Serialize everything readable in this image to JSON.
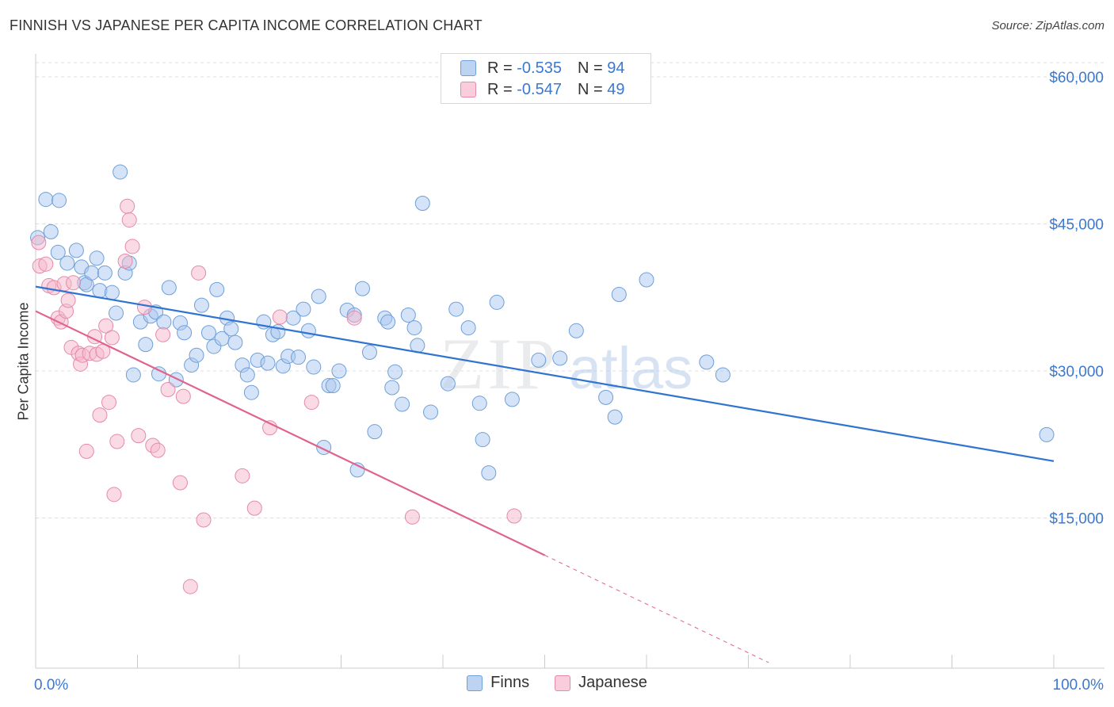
{
  "title": "FINNISH VS JAPANESE PER CAPITA INCOME CORRELATION CHART",
  "source": "Source: ZipAtlas.com",
  "legend": {
    "finns": {
      "r_label": "R =",
      "r_value": "-0.535",
      "n_label": "N =",
      "n_value": "94"
    },
    "japanese": {
      "r_label": "R =",
      "r_value": "-0.547",
      "n_label": "N =",
      "n_value": "49"
    }
  },
  "bottom_legend": {
    "finns": "Finns",
    "japanese": "Japanese"
  },
  "colors": {
    "finns_fill": "#a9c8ef",
    "finns_stroke": "#6f9fd8",
    "finns_line": "#2f74d0",
    "japanese_fill": "#f6b8cc",
    "japanese_stroke": "#e58aa8",
    "japanese_line": "#e0628f",
    "axis_text": "#3b78d0",
    "grid": "#dddddd"
  },
  "watermark": {
    "zip": "ZIP",
    "atlas": "atlas"
  },
  "chart_data": {
    "type": "scatter",
    "title": "FINNISH VS JAPANESE PER CAPITA INCOME CORRELATION CHART",
    "xlabel": "",
    "ylabel": "Per Capita Income",
    "xlim": [
      0,
      100
    ],
    "ylim": [
      0,
      62000
    ],
    "x_tick_labels": [
      "0.0%",
      "100.0%"
    ],
    "y_ticks": [
      15000,
      30000,
      45000,
      60000
    ],
    "y_tick_labels": [
      "$15,000",
      "$30,000",
      "$45,000",
      "$60,000"
    ],
    "series": [
      {
        "name": "Finns",
        "trend": {
          "x": [
            0,
            100
          ],
          "y": [
            38600,
            20800
          ],
          "solid_until": 100
        },
        "points": [
          [
            0.2,
            43600
          ],
          [
            1.0,
            47500
          ],
          [
            1.5,
            44200
          ],
          [
            2.3,
            47400
          ],
          [
            2.2,
            42100
          ],
          [
            3.1,
            41000
          ],
          [
            4.0,
            42300
          ],
          [
            4.5,
            40600
          ],
          [
            4.8,
            39000
          ],
          [
            5.0,
            38800
          ],
          [
            5.5,
            40000
          ],
          [
            6.0,
            41500
          ],
          [
            6.3,
            38200
          ],
          [
            6.8,
            40000
          ],
          [
            7.5,
            38000
          ],
          [
            7.9,
            35900
          ],
          [
            8.3,
            50300
          ],
          [
            8.8,
            40000
          ],
          [
            9.2,
            41000
          ],
          [
            9.6,
            29600
          ],
          [
            10.3,
            35000
          ],
          [
            10.8,
            32700
          ],
          [
            11.3,
            35600
          ],
          [
            11.8,
            36000
          ],
          [
            12.1,
            29700
          ],
          [
            12.6,
            35000
          ],
          [
            13.1,
            38500
          ],
          [
            13.8,
            29100
          ],
          [
            14.2,
            34900
          ],
          [
            14.6,
            33900
          ],
          [
            15.3,
            30600
          ],
          [
            15.8,
            31600
          ],
          [
            16.3,
            36700
          ],
          [
            17.0,
            33900
          ],
          [
            17.5,
            32500
          ],
          [
            17.8,
            38300
          ],
          [
            18.3,
            33300
          ],
          [
            18.8,
            35400
          ],
          [
            19.2,
            34300
          ],
          [
            19.6,
            32900
          ],
          [
            20.3,
            30600
          ],
          [
            20.8,
            29600
          ],
          [
            21.2,
            27800
          ],
          [
            21.8,
            31100
          ],
          [
            22.4,
            35000
          ],
          [
            22.8,
            30800
          ],
          [
            23.3,
            33700
          ],
          [
            23.8,
            34000
          ],
          [
            24.3,
            30500
          ],
          [
            24.8,
            31500
          ],
          [
            25.3,
            35400
          ],
          [
            25.8,
            31400
          ],
          [
            26.3,
            36300
          ],
          [
            26.8,
            34100
          ],
          [
            27.3,
            30400
          ],
          [
            27.8,
            37600
          ],
          [
            28.3,
            22200
          ],
          [
            28.8,
            28500
          ],
          [
            29.2,
            28500
          ],
          [
            29.8,
            30000
          ],
          [
            30.6,
            36200
          ],
          [
            31.3,
            35700
          ],
          [
            31.6,
            19900
          ],
          [
            32.1,
            38400
          ],
          [
            32.8,
            31900
          ],
          [
            33.3,
            23800
          ],
          [
            34.3,
            35400
          ],
          [
            34.6,
            35000
          ],
          [
            35.0,
            28300
          ],
          [
            35.3,
            29900
          ],
          [
            36.0,
            26600
          ],
          [
            36.6,
            35700
          ],
          [
            37.2,
            34400
          ],
          [
            37.5,
            32600
          ],
          [
            38.0,
            47100
          ],
          [
            38.8,
            25800
          ],
          [
            40.5,
            28700
          ],
          [
            41.3,
            36300
          ],
          [
            42.5,
            34400
          ],
          [
            43.6,
            26700
          ],
          [
            43.9,
            23000
          ],
          [
            44.5,
            19600
          ],
          [
            45.3,
            37000
          ],
          [
            46.8,
            27100
          ],
          [
            49.4,
            31100
          ],
          [
            51.5,
            31300
          ],
          [
            53.1,
            34100
          ],
          [
            56.0,
            27300
          ],
          [
            56.9,
            25300
          ],
          [
            57.3,
            37800
          ],
          [
            60.0,
            39300
          ],
          [
            65.9,
            30900
          ],
          [
            67.5,
            29600
          ],
          [
            99.3,
            23500
          ]
        ]
      },
      {
        "name": "Japanese",
        "trend": {
          "x": [
            0,
            50
          ],
          "y": [
            36100,
            11200
          ],
          "extend_to_x": 72,
          "solid_until": 50
        },
        "points": [
          [
            0.3,
            43100
          ],
          [
            0.4,
            40700
          ],
          [
            1.0,
            40900
          ],
          [
            1.3,
            38700
          ],
          [
            1.8,
            38500
          ],
          [
            2.2,
            35400
          ],
          [
            2.5,
            35000
          ],
          [
            2.8,
            38900
          ],
          [
            3.0,
            36100
          ],
          [
            3.2,
            37200
          ],
          [
            3.5,
            32400
          ],
          [
            3.7,
            39000
          ],
          [
            4.2,
            31800
          ],
          [
            4.4,
            30700
          ],
          [
            4.6,
            31600
          ],
          [
            5.0,
            21800
          ],
          [
            5.3,
            31800
          ],
          [
            5.8,
            33500
          ],
          [
            6.0,
            31700
          ],
          [
            6.3,
            25500
          ],
          [
            6.6,
            32000
          ],
          [
            6.9,
            34600
          ],
          [
            7.2,
            26800
          ],
          [
            7.5,
            33400
          ],
          [
            7.7,
            17400
          ],
          [
            8.0,
            22800
          ],
          [
            8.8,
            41200
          ],
          [
            9.0,
            46800
          ],
          [
            9.2,
            45400
          ],
          [
            9.5,
            42700
          ],
          [
            10.1,
            23400
          ],
          [
            10.7,
            36500
          ],
          [
            11.5,
            22400
          ],
          [
            12.0,
            21900
          ],
          [
            12.5,
            33700
          ],
          [
            13.0,
            28100
          ],
          [
            14.2,
            18600
          ],
          [
            14.5,
            27400
          ],
          [
            15.2,
            8000
          ],
          [
            16.0,
            40000
          ],
          [
            16.5,
            14800
          ],
          [
            20.3,
            19300
          ],
          [
            21.5,
            16000
          ],
          [
            23.0,
            24200
          ],
          [
            24.0,
            35500
          ],
          [
            27.1,
            26800
          ],
          [
            31.3,
            35400
          ],
          [
            37.0,
            15100
          ],
          [
            47.0,
            15200
          ]
        ]
      }
    ]
  }
}
